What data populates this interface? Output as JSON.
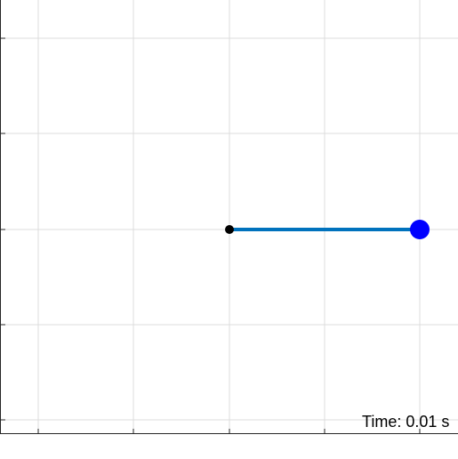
{
  "figure": {
    "x_limits": [
      -1.2,
      1.2
    ],
    "y_limits": [
      -1.2,
      1.2
    ],
    "grid": true,
    "x_ticks": [
      -1,
      -0.5,
      0,
      0.5,
      1
    ],
    "y_ticks": [
      -1,
      -0.5,
      0,
      0.5,
      1
    ]
  },
  "pendulum": {
    "pivot": [
      0,
      0
    ],
    "bob": [
      1,
      0
    ],
    "rod_color": "#0072BD",
    "bob_color": "#0000FF",
    "pivot_color": "#000000"
  },
  "time_label": "Time: 0.01 s"
}
